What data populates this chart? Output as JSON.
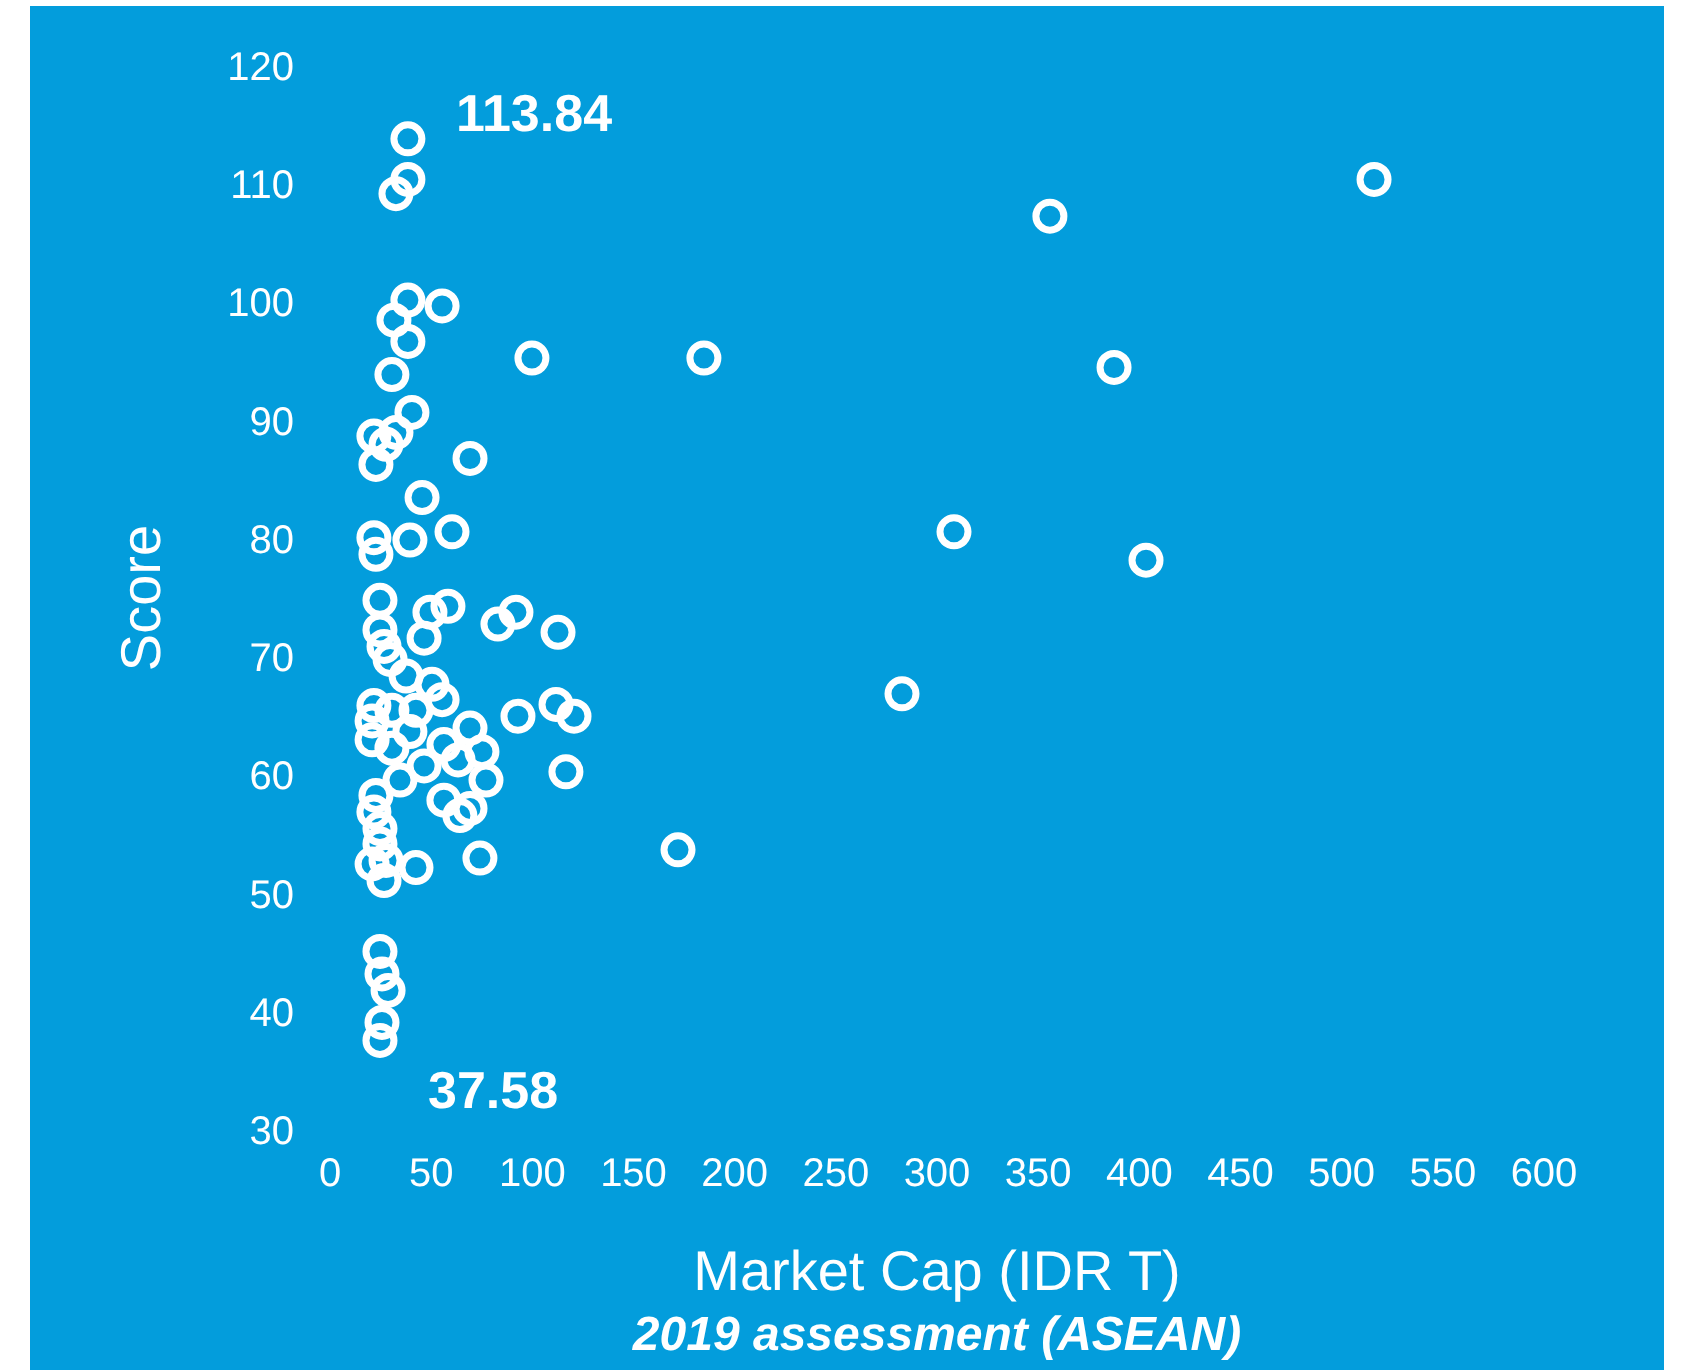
{
  "chart_data": {
    "type": "scatter",
    "title": "2019 assessment (ASEAN)",
    "xlabel": "Market Cap (IDR T)",
    "ylabel": "Score",
    "xlim": [
      0,
      600
    ],
    "ylim": [
      30,
      120
    ],
    "xticks": [
      0,
      50,
      100,
      150,
      200,
      250,
      300,
      350,
      400,
      450,
      500,
      550,
      600
    ],
    "yticks": [
      30,
      40,
      50,
      60,
      70,
      80,
      90,
      100,
      110,
      120
    ],
    "grid": false,
    "marker": "circle",
    "annotations": [
      {
        "text": "113.84",
        "x": 38.5,
        "y": 113.84
      },
      {
        "text": "37.58",
        "x": 24.7,
        "y": 37.58
      }
    ],
    "series": [
      {
        "color": "#ffffff",
        "x": [
          38.5,
          38.5,
          32.6,
          355.8,
          516,
          38.5,
          55.4,
          31.6,
          38.5,
          99.8,
          184.8,
          387.5,
          30.6,
          40.5,
          21.7,
          32.6,
          27.7,
          22.7,
          69.2,
          45.5,
          21.7,
          39.5,
          60.3,
          22.7,
          308.4,
          403.3,
          24.7,
          49.4,
          58.3,
          91.9,
          83.0,
          112.7,
          46.5,
          24.7,
          26.7,
          29.7,
          37.6,
          50.4,
          55.4,
          21.7,
          30.6,
          42.5,
          111.7,
          120.6,
          92.9,
          69.2,
          282.7,
          172,
          20.8,
          20.8,
          39.5,
          30.6,
          56.3,
          75.1,
          63.3,
          46.5,
          116.6,
          77.1,
          34.6,
          22.7,
          56.3,
          69.2,
          64.2,
          21.7,
          24.7,
          24.7,
          27.7,
          20.8,
          42.5,
          26.7,
          74.1,
          24.7,
          25.7,
          28.7,
          25.7,
          24.7
        ],
        "values": [
          113.84,
          110.4,
          109.2,
          107.3,
          110.4,
          100.2,
          99.7,
          98.5,
          96.7,
          95.3,
          95.3,
          94.5,
          93.9,
          90.7,
          88.7,
          89.0,
          88.0,
          86.3,
          86.8,
          83.5,
          80.1,
          79.9,
          80.6,
          78.7,
          80.6,
          78.2,
          74.8,
          73.8,
          74.3,
          73.8,
          72.8,
          72.1,
          71.6,
          72.3,
          70.9,
          69.8,
          68.4,
          67.7,
          66.4,
          65.9,
          65.5,
          65.5,
          66.0,
          65.0,
          65.0,
          64.0,
          66.9,
          53.7,
          64.6,
          63.0,
          63.7,
          62.3,
          62.6,
          62.0,
          61.3,
          60.8,
          60.3,
          59.6,
          59.6,
          58.3,
          57.9,
          57.2,
          56.6,
          56.9,
          55.5,
          54.2,
          52.8,
          52.5,
          52.2,
          51.1,
          53.0,
          45.1,
          43.2,
          41.8,
          39.1,
          37.58
        ]
      }
    ]
  }
}
